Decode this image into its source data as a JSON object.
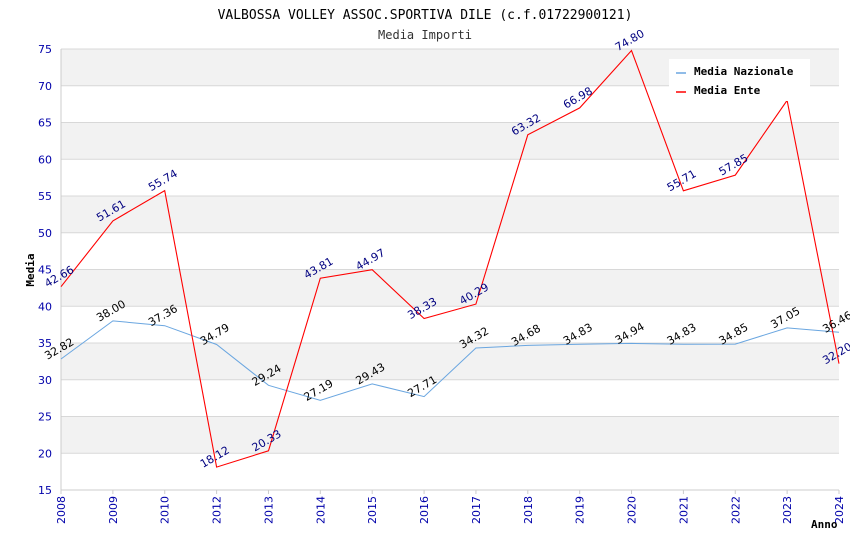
{
  "chart_data": {
    "type": "line",
    "title": "VALBOSSA VOLLEY ASSOC.SPORTIVA DILE (c.f.01722900121)",
    "subtitle": "Media Importi",
    "xlabel": "Anno",
    "ylabel": "Media",
    "ylim": [
      15,
      75
    ],
    "yticks": [
      "15",
      "20",
      "25",
      "30",
      "35",
      "40",
      "45",
      "50",
      "55",
      "60",
      "65",
      "70",
      "75"
    ],
    "categories": [
      "2008",
      "2009",
      "2010",
      "2012",
      "2013",
      "2014",
      "2015",
      "2016",
      "2017",
      "2018",
      "2019",
      "2020",
      "2021",
      "2022",
      "2023",
      "2024"
    ],
    "grid": true,
    "legend_position": "top-right",
    "series": [
      {
        "name": "Media Nazionale",
        "color": "#6aa6e0",
        "label_color": "#000000",
        "values": [
          32.82,
          38.0,
          37.36,
          34.79,
          29.24,
          27.19,
          29.43,
          27.71,
          34.32,
          34.68,
          34.83,
          34.94,
          34.83,
          34.85,
          37.05,
          36.46
        ],
        "labels": [
          "32.82",
          "38.00",
          "37.36",
          "34.79",
          "29.24",
          "27.19",
          "29.43",
          "27.71",
          "34.32",
          "34.68",
          "34.83",
          "34.94",
          "34.83",
          "34.85",
          "37.05",
          "36.46"
        ]
      },
      {
        "name": "Media Ente",
        "color": "#ff0000",
        "label_color": "#000080",
        "values": [
          42.66,
          51.61,
          55.74,
          18.12,
          20.33,
          43.81,
          44.97,
          38.33,
          40.29,
          63.32,
          66.98,
          74.8,
          55.71,
          57.85,
          68.0,
          32.2
        ],
        "labels": [
          "42.66",
          "51.61",
          "55.74",
          "18.12",
          "20.33",
          "43.81",
          "44.97",
          "38.33",
          "40.29",
          "63.32",
          "66.98",
          "74.80",
          "55.71",
          "57.85",
          "",
          "32.20"
        ]
      }
    ]
  }
}
